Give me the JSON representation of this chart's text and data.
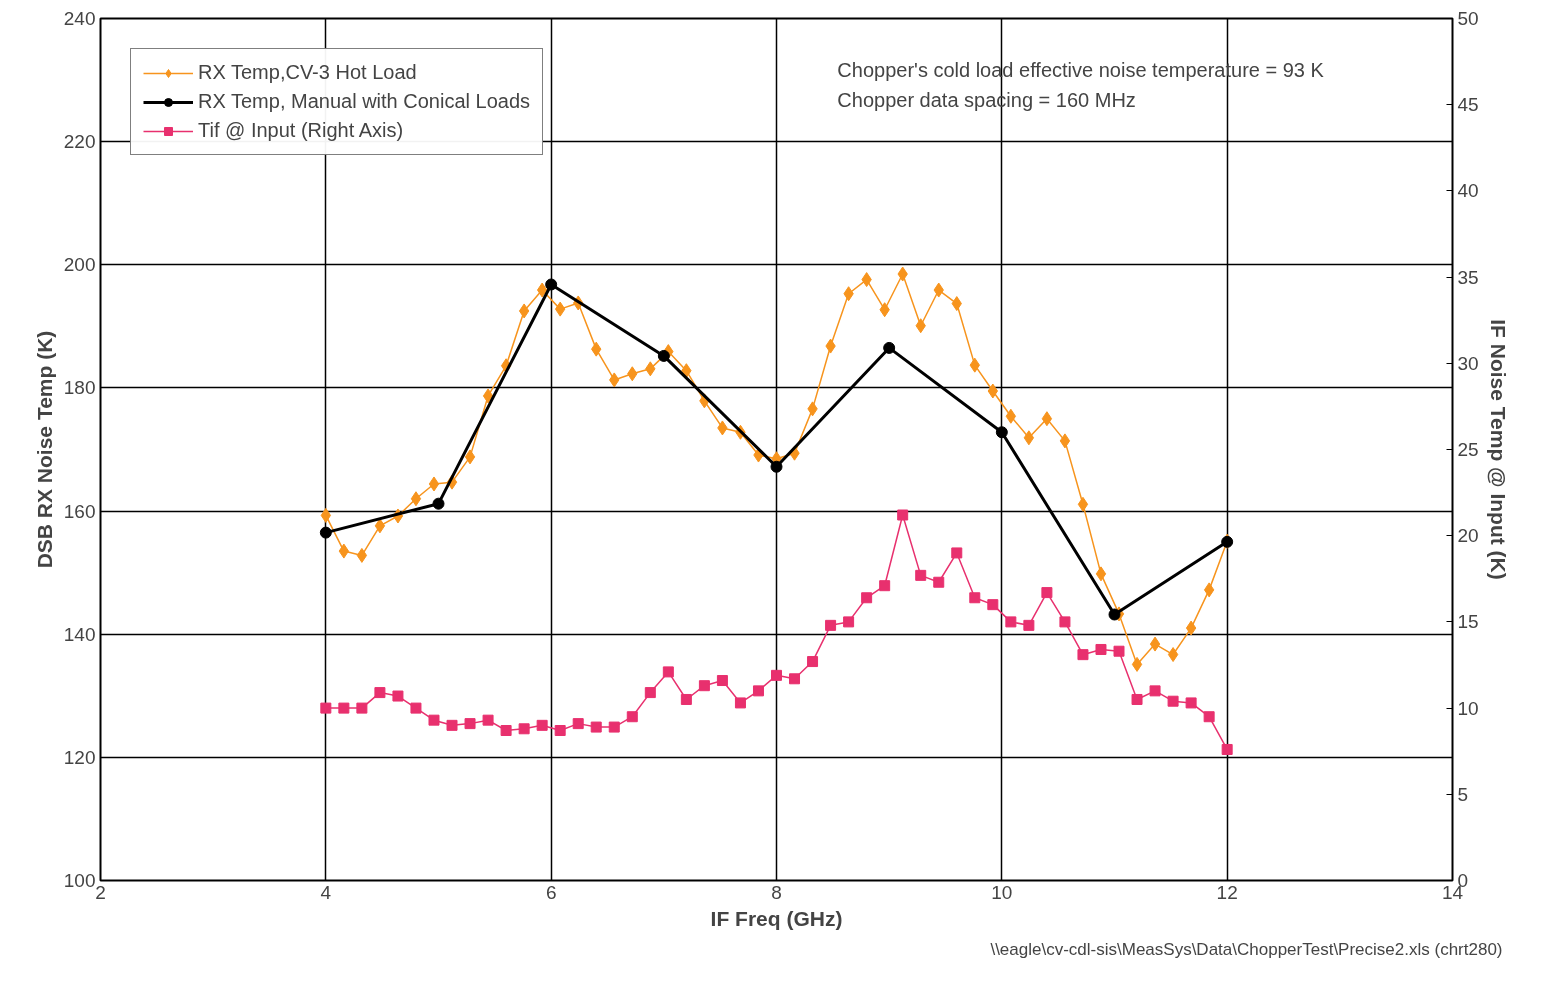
{
  "chart_data": {
    "type": "line",
    "xlabel": "IF Freq (GHz)",
    "ylabel": "DSB RX Noise Temp (K)",
    "y2label": "IF Noise Temp @ Input (K)",
    "x": [
      4.0,
      4.16,
      4.32,
      4.48,
      4.64,
      4.8,
      4.96,
      5.12,
      5.28,
      5.44,
      5.6,
      5.76,
      5.92,
      6.08,
      6.24,
      6.4,
      6.56,
      6.72,
      6.88,
      7.04,
      7.2,
      7.36,
      7.52,
      7.68,
      7.84,
      8.0,
      8.16,
      8.32,
      8.48,
      8.64,
      8.8,
      8.96,
      9.12,
      9.28,
      9.44,
      9.6,
      9.76,
      9.92,
      10.08,
      10.24,
      10.4,
      10.56,
      10.72,
      10.88,
      11.04,
      11.2,
      11.36,
      11.52,
      11.68,
      11.84,
      12.0
    ],
    "series": [
      {
        "name": "RX Temp,CV-3 Hot Load",
        "color": "#f7941d",
        "marker": "diamond",
        "values": [
          159.3,
          153.5,
          152.8,
          157.6,
          159.2,
          162.0,
          164.4,
          164.7,
          168.8,
          178.7,
          183.6,
          192.5,
          195.9,
          192.8,
          193.8,
          186.3,
          181.3,
          182.3,
          183.1,
          185.9,
          182.8,
          177.9,
          173.5,
          172.8,
          169.1,
          168.5,
          169.4,
          176.6,
          186.8,
          195.3,
          197.6,
          192.7,
          198.5,
          190.1,
          195.9,
          193.7,
          183.7,
          179.5,
          175.4,
          171.9,
          175.0,
          171.4,
          161.1,
          149.8,
          143.3,
          135.1,
          138.4,
          136.7,
          141.0,
          147.2,
          155.1
        ]
      },
      {
        "name": "RX Temp, Manual with Conical Loads",
        "color": "#000000",
        "marker": "circle",
        "x": [
          4,
          5,
          6,
          7,
          8,
          9,
          10,
          11,
          12
        ],
        "values": [
          156.5,
          161.2,
          196.8,
          185.2,
          167.2,
          186.5,
          172.8,
          143.2,
          155.0
        ]
      },
      {
        "name": "Tif @ Input (Right Axis)",
        "color": "#e8306e",
        "marker": "square",
        "axis": "y2",
        "values": [
          10.0,
          10.0,
          10.0,
          10.9,
          10.7,
          10.0,
          9.3,
          9.0,
          9.1,
          9.3,
          8.7,
          8.8,
          9.0,
          8.7,
          9.1,
          8.9,
          8.9,
          9.5,
          10.9,
          12.1,
          10.5,
          11.3,
          11.6,
          10.3,
          11.0,
          11.9,
          11.7,
          12.7,
          14.8,
          15.0,
          16.4,
          17.1,
          21.2,
          17.7,
          17.3,
          19.0,
          16.4,
          16.0,
          15.0,
          14.8,
          16.7,
          15.0,
          13.1,
          13.4,
          13.3,
          10.5,
          11.0,
          10.4,
          10.3,
          9.5,
          7.6
        ]
      }
    ],
    "xlim": [
      2,
      14
    ],
    "xticks": [
      2,
      4,
      6,
      8,
      10,
      12,
      14
    ],
    "ylim": [
      100,
      240
    ],
    "yticks": [
      100,
      120,
      140,
      160,
      180,
      200,
      220,
      240
    ],
    "y2lim": [
      0,
      50
    ],
    "y2ticks": [
      0,
      5,
      10,
      15,
      20,
      25,
      30,
      35,
      40,
      45,
      50
    ],
    "grid": true,
    "legend": "top left",
    "line_style": "solid",
    "annotations": [
      "Chopper's cold load effective noise temperature = 93 K",
      "Chopper data spacing = 160 MHz",
      "\\\\eagle\\cv-cdl-sis\\MeasSys\\Data\\ChopperTest\\Precise2.xls (chrt280)"
    ]
  }
}
